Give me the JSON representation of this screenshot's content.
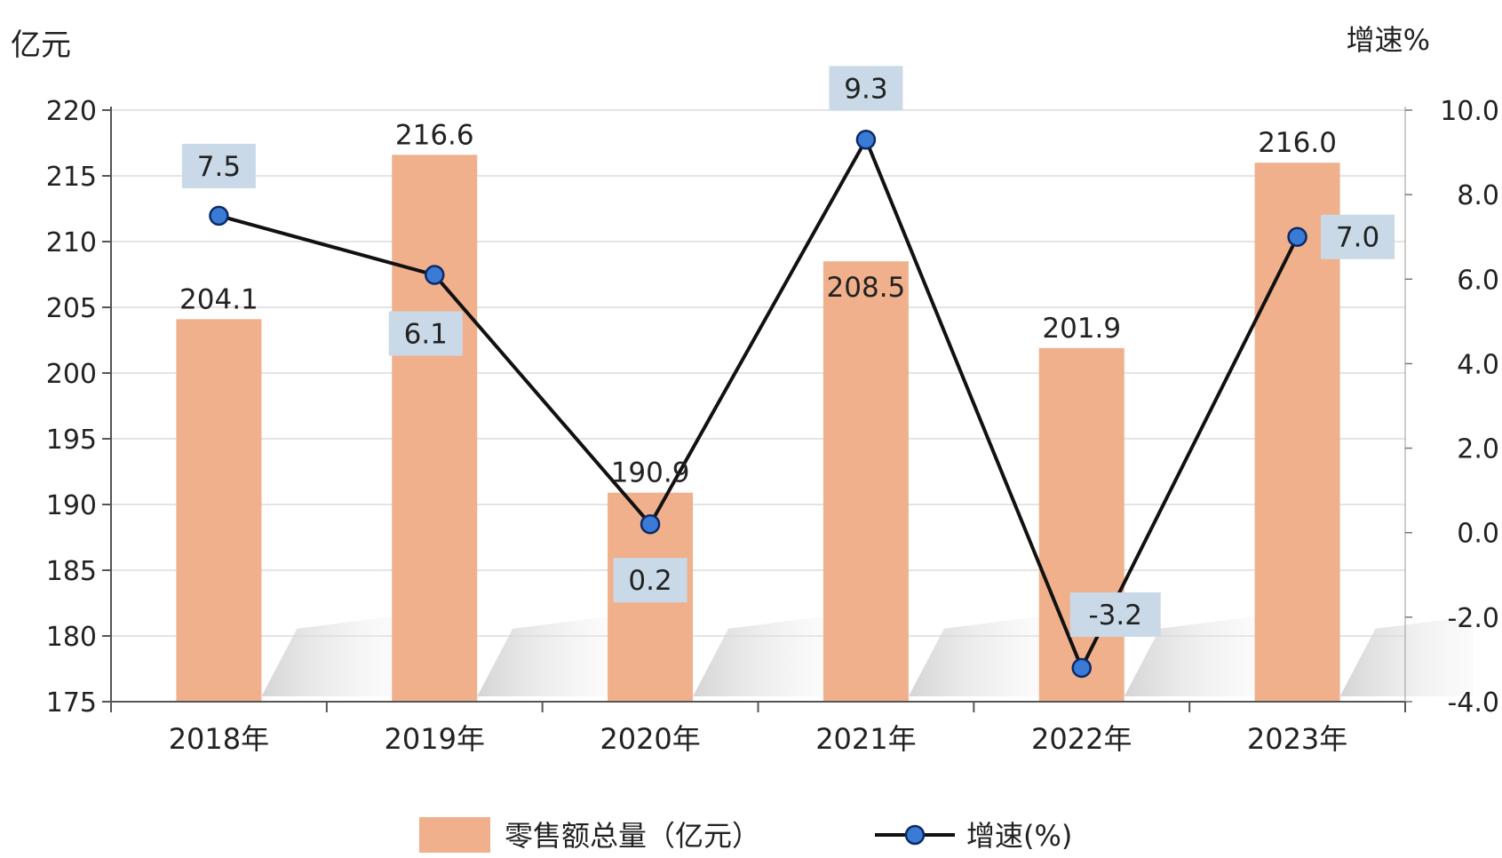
{
  "chart_data": {
    "type": "bar",
    "title": "",
    "xlabel": "",
    "categories": [
      "2018年",
      "2019年",
      "2020年",
      "2021年",
      "2022年",
      "2023年"
    ],
    "y_left": {
      "label": "亿元",
      "min": 175,
      "max": 220,
      "step": 5,
      "ticks": [
        "175",
        "180",
        "185",
        "190",
        "195",
        "200",
        "205",
        "210",
        "215",
        "220"
      ]
    },
    "y_right": {
      "label": "增速%",
      "min": -4,
      "max": 10,
      "step": 2,
      "ticks": [
        "-4.0",
        "-2.0",
        "0.0",
        "2.0",
        "4.0",
        "6.0",
        "8.0",
        "10.0"
      ]
    },
    "series": [
      {
        "name": "零售额总量（亿元）",
        "type": "bar",
        "axis": "left",
        "values": [
          204.1,
          216.6,
          190.9,
          208.5,
          201.9,
          216.0
        ],
        "labels": [
          "204.1",
          "216.6",
          "190.9",
          "208.5",
          "201.9",
          "216.0"
        ]
      },
      {
        "name": "增速(%)",
        "type": "line",
        "axis": "right",
        "values": [
          7.5,
          6.1,
          0.2,
          9.3,
          -3.2,
          7.0
        ],
        "labels": [
          "7.5",
          "6.1",
          "0.2",
          "9.3",
          "-3.2",
          "7.0"
        ]
      }
    ],
    "legend_position": "bottom",
    "grid": true,
    "colors": {
      "bar": "#f0b08c",
      "line": "#111111",
      "marker": "#3a7bd5",
      "label_box": "#c9d9e8"
    }
  }
}
